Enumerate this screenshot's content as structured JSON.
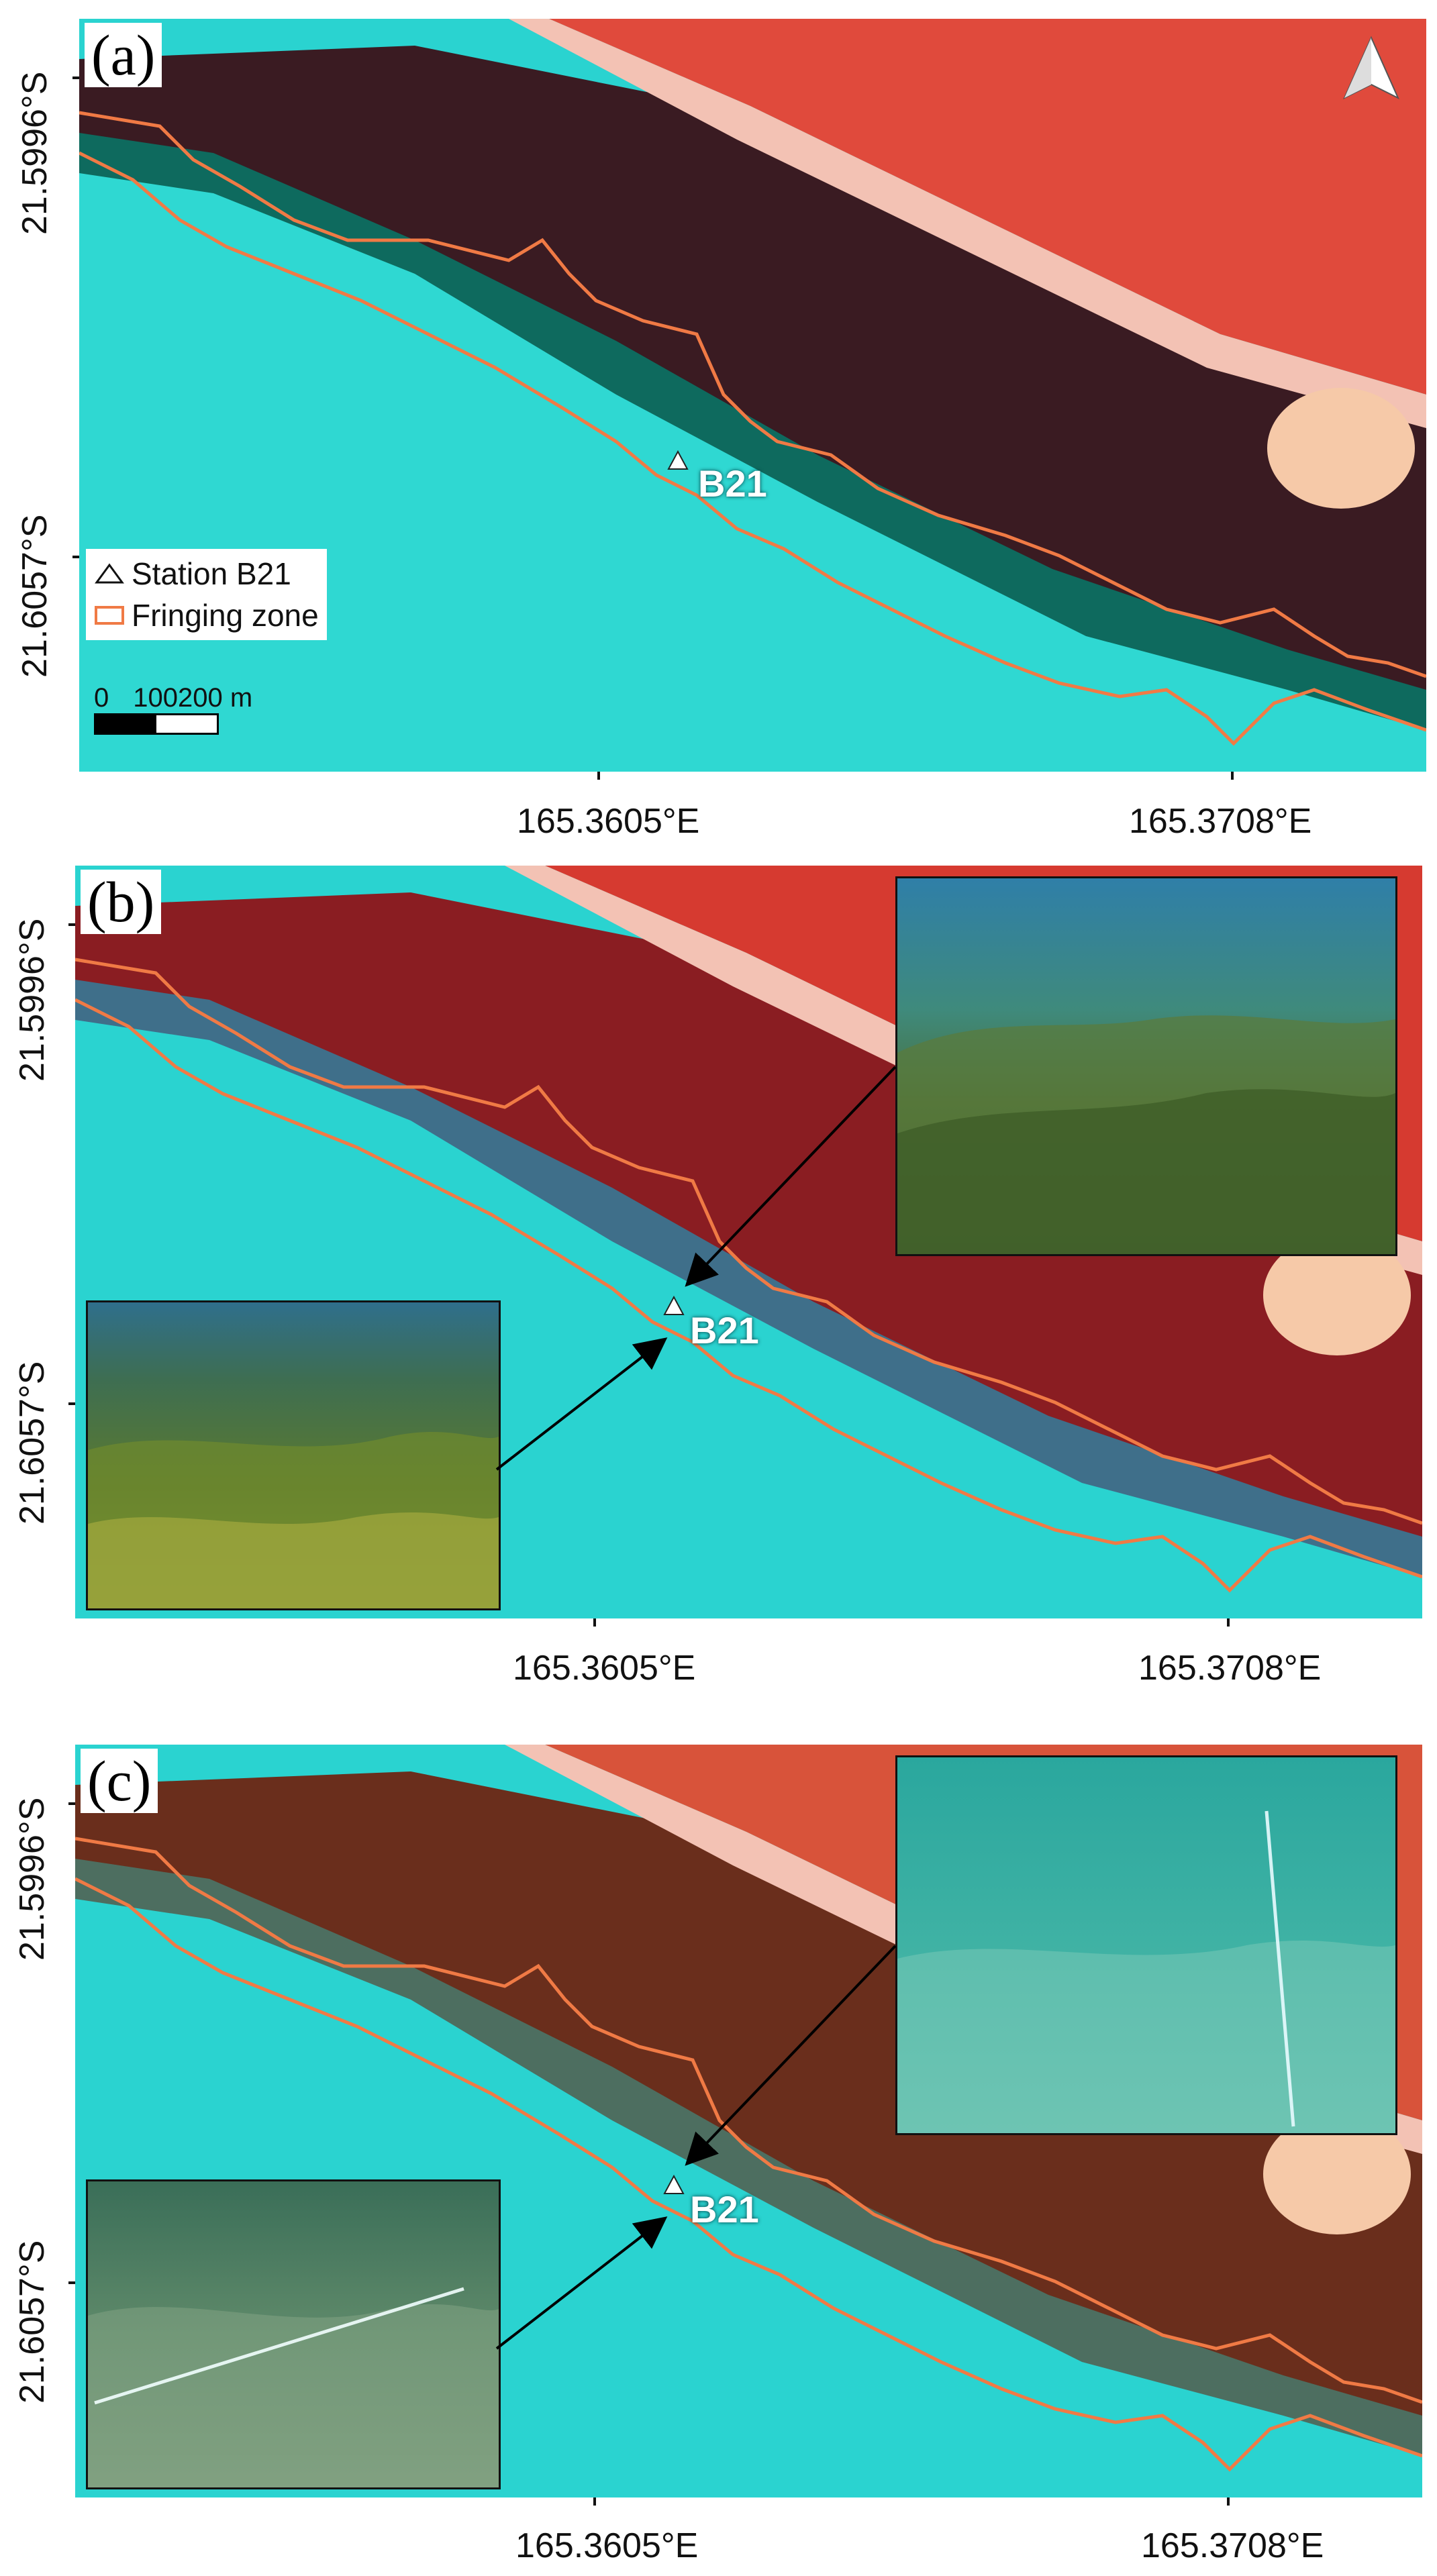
{
  "figure": {
    "panels": [
      {
        "id": "a",
        "letter": "(a)",
        "station_label": "B21",
        "lat_top": "21.5996°S",
        "lat_bottom": "21.6057°S",
        "lon_left": "165.3605°E",
        "lon_right": "165.3708°E",
        "band_color": "#3a1b22",
        "has_legend": true,
        "has_north_arrow": true,
        "insets": []
      },
      {
        "id": "b",
        "letter": "(b)",
        "station_label": "B21",
        "lat_top": "21.5996°S",
        "lat_bottom": "21.6057°S",
        "lon_left": "165.3605°E",
        "lon_right": "165.3708°E",
        "band_color": "#8a1d22",
        "insets": [
          "seagrass-dense-photo",
          "seagrass-meadow-photo"
        ]
      },
      {
        "id": "c",
        "letter": "(c)",
        "station_label": "B21",
        "lat_top": "21.5996°S",
        "lat_bottom": "21.6057°S",
        "lon_left": "165.3605°E",
        "lon_right": "165.3708°E",
        "band_color": "#6a2e1c",
        "insets": [
          "sparse-seabed-photo",
          "seabed-transect-photo"
        ]
      }
    ],
    "legend": {
      "station_entry": "Station  B21",
      "zone_entry": "Fringing zone",
      "zone_color": "#f07a45"
    },
    "scale": {
      "labels": [
        "0",
        "100200 m"
      ]
    },
    "colors": {
      "water": "#2ad3d0",
      "shallow_water": "#1fb5b0",
      "fringing_outline": "#f07a45",
      "land": "#e8473a"
    }
  }
}
